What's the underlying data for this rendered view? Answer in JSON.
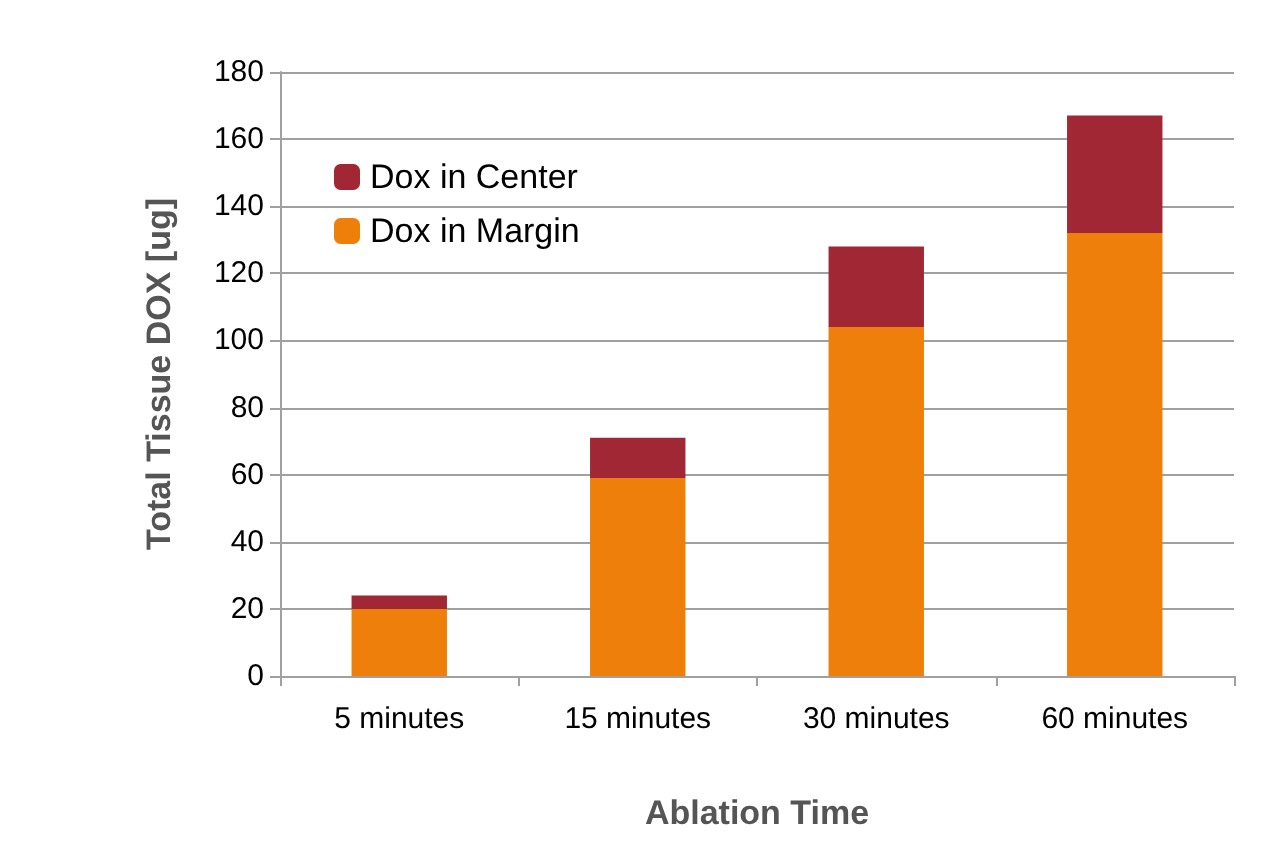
{
  "chart_data": {
    "type": "bar",
    "stacked": true,
    "xlabel": "Ablation Time",
    "ylabel": "Total Tissue DOX [ug]",
    "categories": [
      "5 minutes",
      "15 minutes",
      "30 minutes",
      "60 minutes"
    ],
    "series": [
      {
        "name": "Dox in Margin",
        "color": "#ef7f0b",
        "values": [
          20,
          59,
          104,
          132
        ]
      },
      {
        "name": "Dox in Center",
        "color": "#a12735",
        "values": [
          4,
          12,
          24,
          35
        ]
      }
    ],
    "ylim": [
      0,
      180
    ],
    "yticks": [
      0,
      20,
      40,
      60,
      80,
      100,
      120,
      140,
      160,
      180
    ],
    "grid": "y",
    "legend": "top left"
  }
}
